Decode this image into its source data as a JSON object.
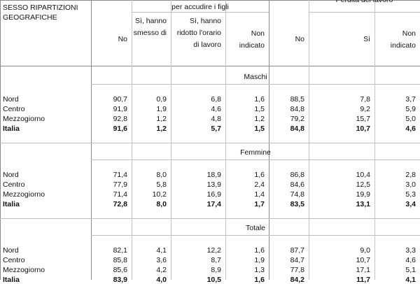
{
  "header": {
    "title_left": "SESSO RIPARTIZIONI GEOGRAFICHE",
    "group1_title": "per accudire i figli",
    "group2_title": "Perdita del lavoro",
    "columns": [
      "No",
      "Sì, hanno smesso di",
      "Sì, hanno ridotto l'orario di lavoro",
      "Non indicato",
      "No",
      "Sì",
      "Non indicato"
    ]
  },
  "sections": [
    {
      "title": "Maschi",
      "rows": [
        {
          "label": "Nord",
          "bold": false,
          "values": [
            "90,7",
            "0,9",
            "6,8",
            "1,6",
            "88,5",
            "7,8",
            "3,7"
          ]
        },
        {
          "label": "Centro",
          "bold": false,
          "values": [
            "91,9",
            "1,9",
            "4,6",
            "1,5",
            "84,8",
            "9,2",
            "5,9"
          ]
        },
        {
          "label": "Mezzogiorno",
          "bold": false,
          "values": [
            "92,8",
            "1,2",
            "4,8",
            "1,2",
            "79,2",
            "15,7",
            "5,0"
          ]
        },
        {
          "label": "Italia",
          "bold": true,
          "values": [
            "91,6",
            "1,2",
            "5,7",
            "1,5",
            "84,8",
            "10,7",
            "4,6"
          ]
        }
      ]
    },
    {
      "title": "Femmine",
      "rows": [
        {
          "label": "Nord",
          "bold": false,
          "values": [
            "71,4",
            "8,0",
            "18,9",
            "1,6",
            "86,8",
            "10,4",
            "2,8"
          ]
        },
        {
          "label": "Centro",
          "bold": false,
          "values": [
            "77,9",
            "5,8",
            "13,9",
            "2,4",
            "84,6",
            "12,5",
            "3,0"
          ]
        },
        {
          "label": "Mezzogiorno",
          "bold": false,
          "values": [
            "71,4",
            "10,2",
            "16,9",
            "1,4",
            "74,8",
            "19,9",
            "5,3"
          ]
        },
        {
          "label": "Italia",
          "bold": true,
          "values": [
            "72,8",
            "8,0",
            "17,4",
            "1,7",
            "83,5",
            "13,1",
            "3,4"
          ]
        }
      ]
    },
    {
      "title": "Totale",
      "rows": [
        {
          "label": "Nord",
          "bold": false,
          "values": [
            "82,1",
            "4,1",
            "12,2",
            "1,6",
            "87,7",
            "9,0",
            "3,3"
          ]
        },
        {
          "label": "Centro",
          "bold": false,
          "values": [
            "85,8",
            "3,6",
            "8,7",
            "1,9",
            "84,7",
            "10,7",
            "4,6"
          ]
        },
        {
          "label": "Mezzogiorno",
          "bold": false,
          "values": [
            "85,6",
            "4,2",
            "8,9",
            "1,3",
            "77,8",
            "17,1",
            "5,1"
          ]
        },
        {
          "label": "Italia",
          "bold": true,
          "values": [
            "83,9",
            "4,0",
            "10,5",
            "1,6",
            "84,2",
            "11,7",
            "4,1"
          ]
        }
      ]
    }
  ]
}
